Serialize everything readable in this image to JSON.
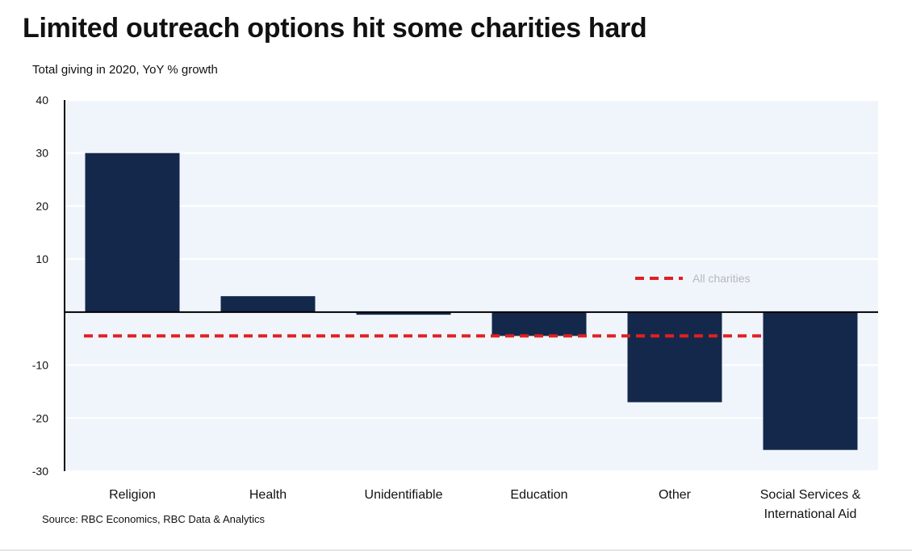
{
  "chart_data": {
    "type": "bar",
    "title": "Limited outreach options hit some charities hard",
    "subtitle": "Total giving in 2020, YoY % growth",
    "source": "Source: RBC Economics, RBC Data & Analytics",
    "categories": [
      [
        "Religion"
      ],
      [
        "Health"
      ],
      [
        "Unidentifiable"
      ],
      [
        "Education"
      ],
      [
        "Other"
      ],
      [
        "Social Services &",
        "International Aid"
      ]
    ],
    "values": [
      30,
      3,
      -0.5,
      -4.5,
      -17,
      -26
    ],
    "reference_line": {
      "name": "All charities",
      "value": -4.5
    },
    "ylim": [
      -30,
      40
    ],
    "yticks": [
      40,
      30,
      20,
      10,
      -10,
      -20,
      -30
    ],
    "xlabel": "",
    "ylabel": "",
    "grid": true,
    "legend": "right",
    "colors": {
      "bar": "#14284b",
      "reference_line": "#e02020",
      "plot_background": "#f0f5fc",
      "gridline": "#ffffff",
      "axis": "#000000",
      "legend_text": "#b8b8b8"
    }
  }
}
